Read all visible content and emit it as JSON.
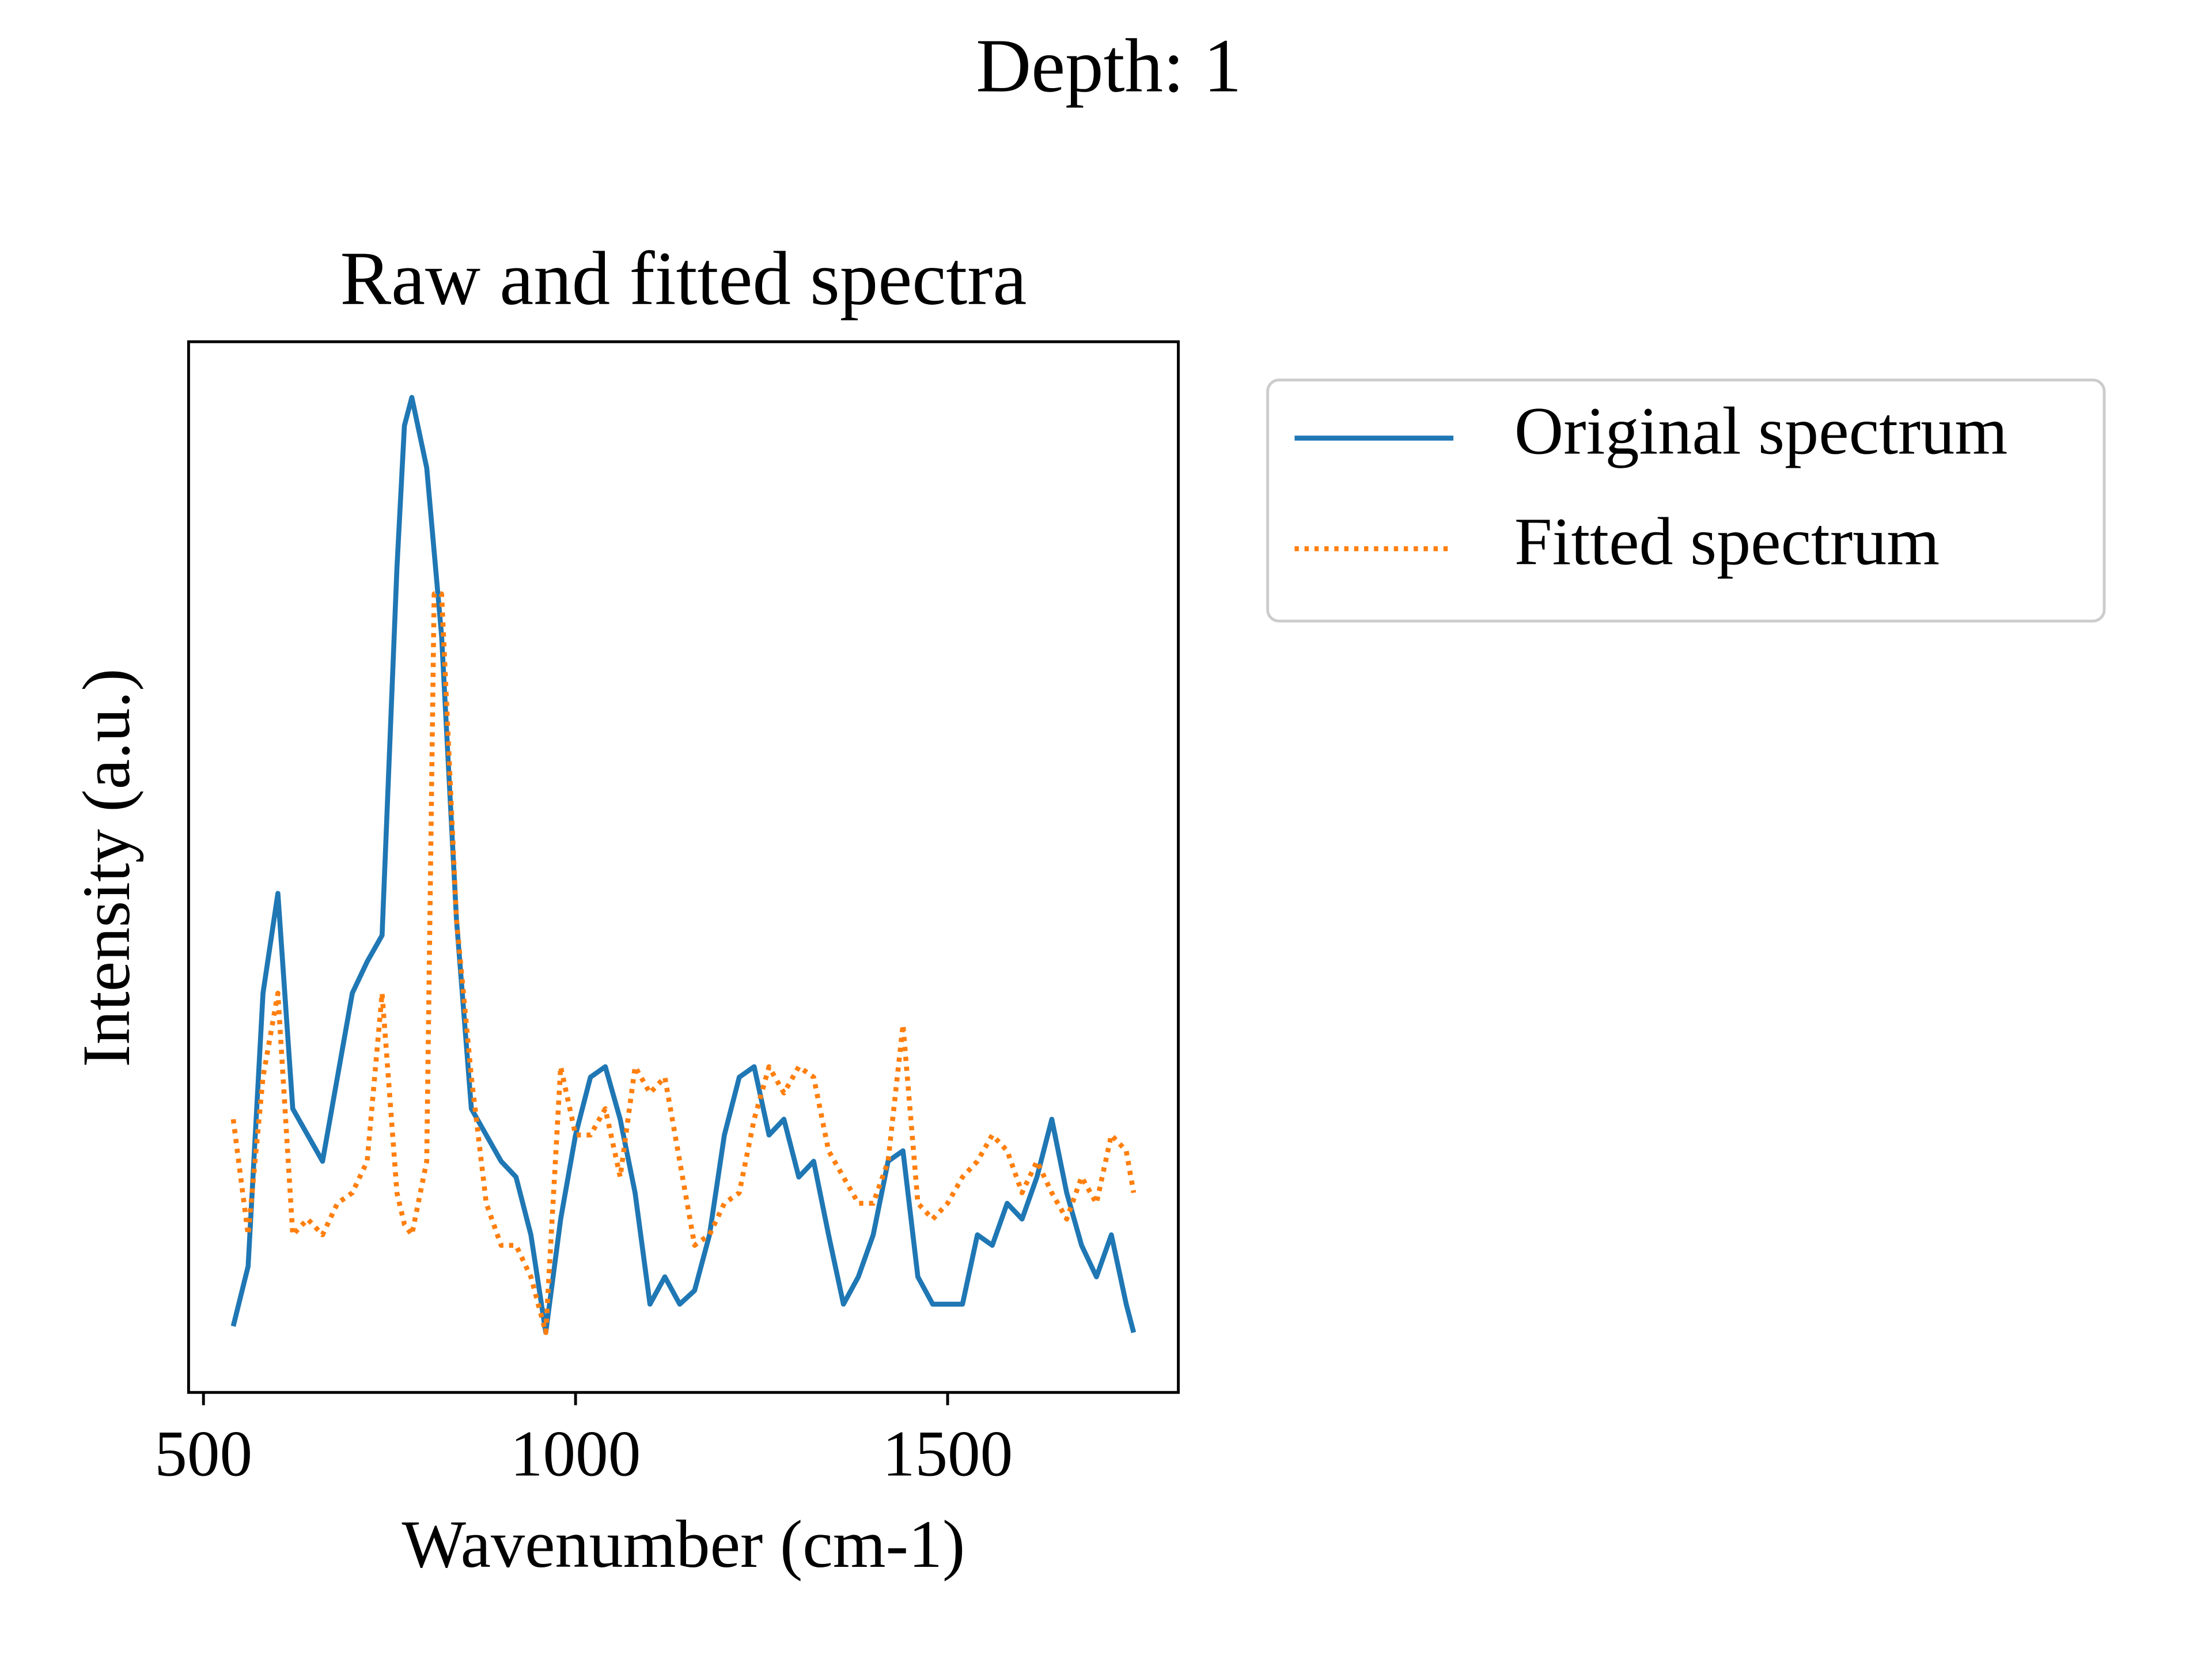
{
  "chart_data": {
    "type": "line",
    "suptitle": "Depth: 1",
    "title": "Raw and fitted spectra",
    "xlabel": "Wavenumber (cm-1)",
    "ylabel": "Intensity (a.u.)",
    "x": [
      540,
      560,
      580,
      600,
      620,
      640,
      660,
      680,
      700,
      720,
      740,
      760,
      770,
      780,
      800,
      810,
      820,
      840,
      860,
      880,
      900,
      920,
      940,
      960,
      980,
      1000,
      1020,
      1040,
      1060,
      1080,
      1100,
      1120,
      1140,
      1160,
      1180,
      1200,
      1220,
      1240,
      1260,
      1280,
      1300,
      1320,
      1340,
      1360,
      1380,
      1400,
      1420,
      1440,
      1460,
      1480,
      1500,
      1520,
      1540,
      1560,
      1580,
      1600,
      1620,
      1640,
      1660,
      1680,
      1700,
      1720,
      1740,
      1750
    ],
    "series": [
      {
        "name": "Original spectrum",
        "color": "#1f77b4",
        "dash": "solid",
        "values": [
          0.063,
          0.12,
          0.38,
          0.475,
          0.27,
          0.245,
          0.22,
          0.3,
          0.38,
          0.41,
          0.435,
          0.785,
          0.92,
          0.947,
          0.88,
          0.8,
          0.72,
          0.45,
          0.27,
          0.245,
          0.22,
          0.205,
          0.15,
          0.057,
          0.165,
          0.245,
          0.3,
          0.31,
          0.26,
          0.19,
          0.084,
          0.11,
          0.084,
          0.097,
          0.15,
          0.245,
          0.3,
          0.31,
          0.245,
          0.26,
          0.205,
          0.22,
          0.15,
          0.084,
          0.11,
          0.15,
          0.22,
          0.23,
          0.11,
          0.084,
          0.084,
          0.084,
          0.15,
          0.14,
          0.18,
          0.165,
          0.205,
          0.26,
          0.19,
          0.14,
          0.11,
          0.15,
          0.084,
          0.057
        ]
      },
      {
        "name": "Fitted spectrum",
        "color": "#ff7f0e",
        "dash": "dotted",
        "values": [
          0.26,
          0.15,
          0.3,
          0.38,
          0.15,
          0.165,
          0.15,
          0.18,
          0.19,
          0.22,
          0.38,
          0.19,
          0.16,
          0.15,
          0.22,
          0.76,
          0.76,
          0.45,
          0.3,
          0.18,
          0.14,
          0.14,
          0.11,
          0.057,
          0.31,
          0.245,
          0.245,
          0.27,
          0.205,
          0.31,
          0.285,
          0.3,
          0.22,
          0.14,
          0.15,
          0.18,
          0.19,
          0.26,
          0.31,
          0.285,
          0.31,
          0.3,
          0.23,
          0.205,
          0.18,
          0.18,
          0.22,
          0.35,
          0.18,
          0.165,
          0.18,
          0.205,
          0.22,
          0.245,
          0.23,
          0.19,
          0.22,
          0.19,
          0.165,
          0.205,
          0.18,
          0.245,
          0.23,
          0.19
        ]
      }
    ],
    "xlim": [
      480,
      1810
    ],
    "ylim": [
      0,
      1
    ],
    "xticks": [
      500,
      1000,
      1500
    ],
    "grid": false
  }
}
